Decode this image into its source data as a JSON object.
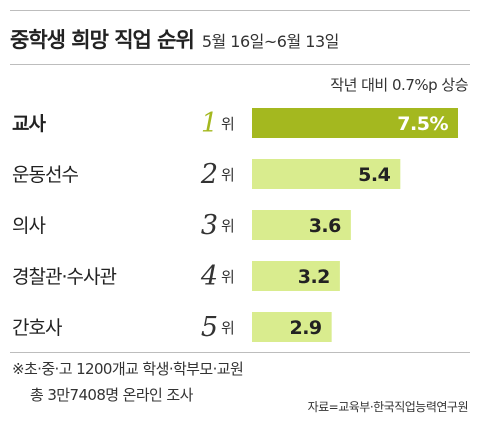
{
  "header": {
    "title": "중학생 희망 직업 순위",
    "subtitle": "5월 16일~6월 13일"
  },
  "note": "작년 대비 0.7%p 상승",
  "footnote": {
    "line1": "※초·중·고 1200개교 학생·학부모·교원",
    "line2": "총 3만7408명 온라인 조사"
  },
  "source": "자료=교육부·한국직업능력연구원",
  "colors": {
    "highlight_bar": "#a4b81f",
    "bar": "#d9ec8e",
    "value_on_highlight": "#ffffff",
    "value": "#222222"
  },
  "chart_data": {
    "type": "bar",
    "orientation": "horizontal",
    "rank_suffix": "위",
    "unit_suffix_first": "%",
    "xlim": [
      0,
      7.5
    ],
    "categories": [
      "교사",
      "운동선수",
      "의사",
      "경찰관·수사관",
      "간호사"
    ],
    "ranks": [
      "1",
      "2",
      "3",
      "4",
      "5"
    ],
    "values": [
      7.5,
      5.4,
      3.6,
      3.2,
      2.9
    ],
    "value_labels": [
      "7.5",
      "5.4",
      "3.6",
      "3.2",
      "2.9"
    ],
    "highlight_index": 0
  }
}
